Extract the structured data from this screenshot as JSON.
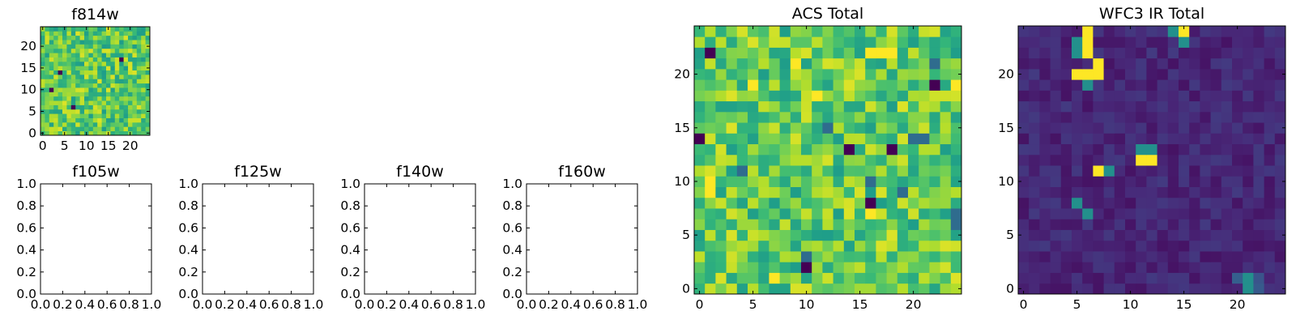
{
  "chart_data": [
    {
      "type": "heatmap",
      "id": "f814w",
      "title": "f814w",
      "shape": [
        25,
        25
      ],
      "xlim": [
        -0.5,
        24.5
      ],
      "ylim": [
        -0.5,
        24.5
      ],
      "xticks": [
        0,
        5,
        10,
        15,
        20
      ],
      "xtick_labels": [
        "0",
        "5",
        "10",
        "15",
        "20"
      ],
      "yticks": [
        0,
        5,
        10,
        15,
        20
      ],
      "ytick_labels": [
        "0",
        "5",
        "10",
        "15",
        "20"
      ],
      "colormap": "viridis",
      "description_values": {
        "typical_normalized": "0.6-0.95",
        "min_spots": [
          [
            7,
            6
          ],
          [
            4,
            14
          ],
          [
            18,
            17
          ],
          [
            2,
            10
          ]
        ]
      }
    },
    {
      "type": "empty",
      "id": "f105w",
      "title": "f105w",
      "xlim": [
        0,
        1
      ],
      "ylim": [
        0,
        1
      ],
      "xtick_labels": [
        "0.0",
        "0.2",
        "0.4",
        "0.6",
        "0.8",
        "1.0"
      ],
      "ytick_labels": [
        "0.0",
        "0.2",
        "0.4",
        "0.6",
        "0.8",
        "1.0"
      ]
    },
    {
      "type": "empty",
      "id": "f125w",
      "title": "f125w",
      "xlim": [
        0,
        1
      ],
      "ylim": [
        0,
        1
      ],
      "xtick_labels": [
        "0.0",
        "0.2",
        "0.4",
        "0.6",
        "0.8",
        "1.0"
      ],
      "ytick_labels": [
        "0.0",
        "0.2",
        "0.4",
        "0.6",
        "0.8",
        "1.0"
      ]
    },
    {
      "type": "empty",
      "id": "f140w",
      "title": "f140w",
      "xlim": [
        0,
        1
      ],
      "ylim": [
        0,
        1
      ],
      "xtick_labels": [
        "0.0",
        "0.2",
        "0.4",
        "0.6",
        "0.8",
        "1.0"
      ],
      "ytick_labels": [
        "0.0",
        "0.2",
        "0.4",
        "0.6",
        "0.8",
        "1.0"
      ]
    },
    {
      "type": "empty",
      "id": "f160w",
      "title": "f160w",
      "xlim": [
        0,
        1
      ],
      "ylim": [
        0,
        1
      ],
      "xtick_labels": [
        "0.0",
        "0.2",
        "0.4",
        "0.6",
        "0.8",
        "1.0"
      ],
      "ytick_labels": [
        "0.0",
        "0.2",
        "0.4",
        "0.6",
        "0.8",
        "1.0"
      ]
    },
    {
      "type": "heatmap",
      "id": "acs-total",
      "title": "ACS Total",
      "shape": [
        25,
        25
      ],
      "xlim": [
        -0.5,
        24.5
      ],
      "ylim": [
        -0.5,
        24.5
      ],
      "xticks": [
        0,
        5,
        10,
        15,
        20
      ],
      "xtick_labels": [
        "0",
        "5",
        "10",
        "15",
        "20"
      ],
      "yticks": [
        0,
        5,
        10,
        15,
        20
      ],
      "ytick_labels": [
        "0",
        "5",
        "10",
        "15",
        "20"
      ],
      "colormap": "viridis",
      "min_pixels": [
        [
          1,
          22
        ],
        [
          0,
          14
        ],
        [
          14,
          13
        ],
        [
          18,
          13
        ],
        [
          16,
          8
        ],
        [
          10,
          2
        ],
        [
          22,
          19
        ]
      ],
      "max_pixels": [
        [
          16,
          22
        ],
        [
          17,
          22
        ],
        [
          18,
          22
        ],
        [
          9,
          21
        ],
        [
          11,
          18
        ],
        [
          5,
          19
        ],
        [
          24,
          19
        ],
        [
          1,
          9
        ],
        [
          1,
          10
        ],
        [
          7,
          1
        ],
        [
          16,
          7
        ]
      ]
    },
    {
      "type": "heatmap",
      "id": "wfc3-ir-total",
      "title": "WFC3 IR Total",
      "shape": [
        25,
        25
      ],
      "xlim": [
        -0.5,
        24.5
      ],
      "ylim": [
        -0.5,
        24.5
      ],
      "xticks": [
        0,
        5,
        10,
        15,
        20
      ],
      "xtick_labels": [
        "0",
        "5",
        "10",
        "15",
        "20"
      ],
      "yticks": [
        0,
        5,
        10,
        15,
        20
      ],
      "ytick_labels": [
        "0",
        "5",
        "10",
        "15",
        "20"
      ],
      "colormap": "viridis",
      "bright_pixels": [
        [
          6,
          24
        ],
        [
          6,
          23
        ],
        [
          6,
          22
        ],
        [
          7,
          21
        ],
        [
          6,
          20
        ],
        [
          7,
          20
        ],
        [
          5,
          20
        ],
        [
          15,
          24
        ],
        [
          11,
          12
        ],
        [
          12,
          12
        ],
        [
          7,
          11
        ]
      ],
      "medium_pixels": [
        [
          5,
          23
        ],
        [
          5,
          22
        ],
        [
          6,
          19
        ],
        [
          14,
          24
        ],
        [
          15,
          23
        ],
        [
          12,
          13
        ],
        [
          11,
          13
        ],
        [
          8,
          11
        ],
        [
          5,
          8
        ],
        [
          6,
          7
        ],
        [
          21,
          1
        ],
        [
          21,
          0
        ]
      ]
    }
  ]
}
